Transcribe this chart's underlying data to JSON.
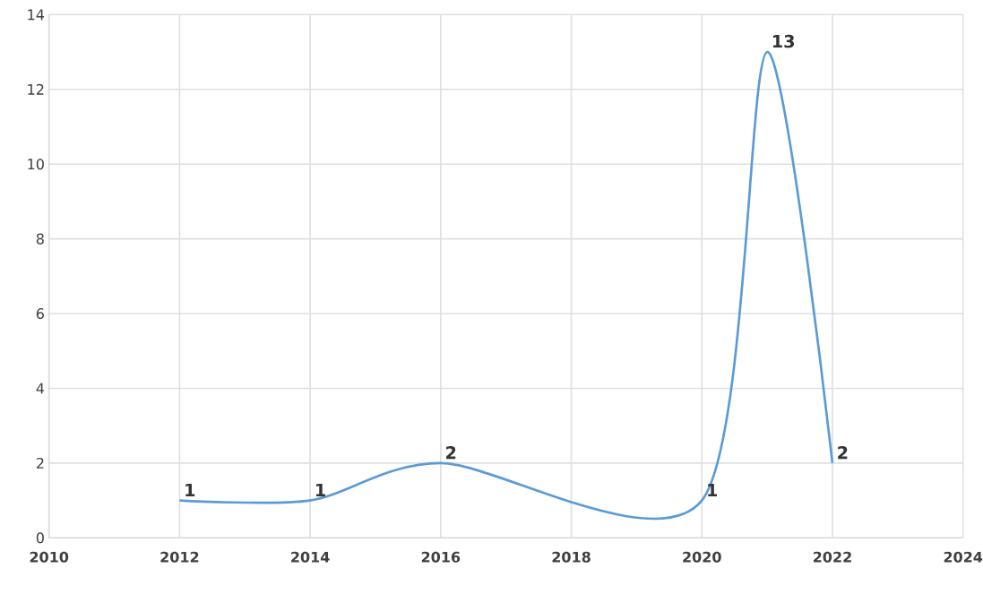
{
  "chart_data": {
    "type": "line",
    "x": [
      2012,
      2014,
      2016,
      2020,
      2021,
      2022
    ],
    "values": [
      1,
      1,
      2,
      1,
      13,
      2
    ],
    "color": "#5b9bd5",
    "data_labels": true,
    "grid": true,
    "marker": "none",
    "line_style": "solid",
    "xlim": [
      2010,
      2024
    ],
    "xticks": [
      2010,
      2012,
      2014,
      2016,
      2018,
      2020,
      2022,
      2024
    ],
    "ylim": [
      0,
      14
    ],
    "yticks": [
      0,
      2,
      4,
      6,
      8,
      10,
      12,
      14
    ]
  }
}
